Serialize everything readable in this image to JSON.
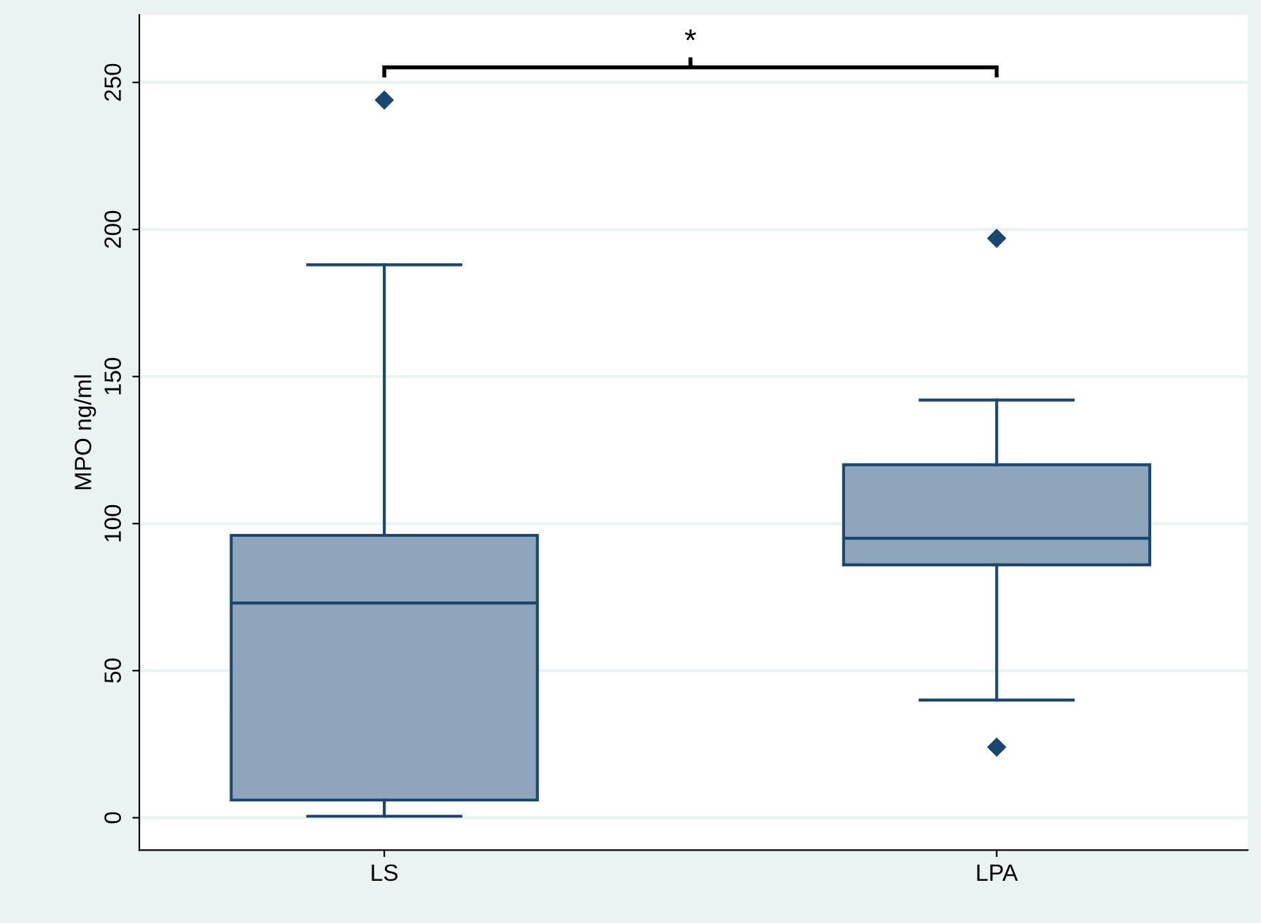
{
  "chart_data": {
    "type": "box",
    "ylabel": "MPO ng/ml",
    "categories": [
      "LS",
      "LPA"
    ],
    "boxes": [
      {
        "low": 0.5,
        "q1": 6,
        "median": 73,
        "q3": 96,
        "high": 188,
        "outliers": [
          244
        ]
      },
      {
        "low": 40,
        "q1": 86,
        "median": 95,
        "q3": 120,
        "high": 142,
        "outliers": [
          197,
          24
        ]
      }
    ],
    "color": "#8ea5bb",
    "ylim": [
      -11,
      273
    ],
    "yticks": [
      0,
      50,
      100,
      150,
      200,
      250
    ],
    "grid": "y",
    "marker": "diamond",
    "annotations": [
      "*"
    ]
  }
}
